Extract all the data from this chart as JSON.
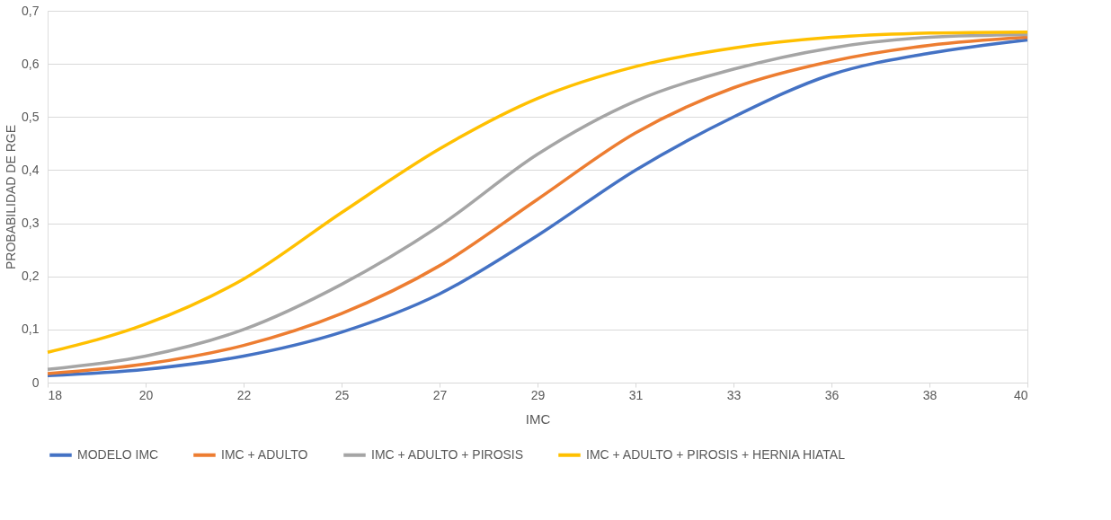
{
  "chart_data": {
    "type": "line",
    "xlabel": "IMC",
    "ylabel": "PROBABILIDAD DE RGE",
    "x": [
      18,
      20.2,
      22.4,
      24.6,
      26.8,
      29,
      31.2,
      33.4,
      35.6,
      37.8,
      40
    ],
    "xlim": [
      18,
      40
    ],
    "xticks": [
      18,
      {
        "value": 20.2,
        "label": "20"
      },
      {
        "value": 22.4,
        "label": "22"
      },
      {
        "value": 24.6,
        "label": "25"
      },
      {
        "value": 26.8,
        "label": "27"
      },
      29,
      {
        "value": 31.2,
        "label": "31"
      },
      {
        "value": 33.4,
        "label": "33"
      },
      {
        "value": 35.6,
        "label": "36"
      },
      {
        "value": 37.8,
        "label": "38"
      },
      40
    ],
    "ylim": [
      0,
      0.7
    ],
    "yticks": [
      {
        "value": 0,
        "label": "0"
      },
      {
        "value": 0.1,
        "label": "0,1"
      },
      {
        "value": 0.2,
        "label": "0,2"
      },
      {
        "value": 0.3,
        "label": "0,3"
      },
      {
        "value": 0.4,
        "label": "0,4"
      },
      {
        "value": 0.5,
        "label": "0,5"
      },
      {
        "value": 0.6,
        "label": "0,6"
      },
      {
        "value": 0.7,
        "label": "0,7"
      }
    ],
    "grid": "y",
    "legend": "bottom",
    "marker": "none",
    "line_style": "solid",
    "series": [
      {
        "name": "MODELO IMC",
        "color": "#4472c4",
        "values": [
          0.013,
          0.025,
          0.05,
          0.095,
          0.167,
          0.277,
          0.4,
          0.5,
          0.58,
          0.62,
          0.645
        ]
      },
      {
        "name": "IMC + ADULTO",
        "color": "#ed7d31",
        "values": [
          0.017,
          0.035,
          0.07,
          0.13,
          0.22,
          0.345,
          0.47,
          0.555,
          0.605,
          0.635,
          0.65
        ]
      },
      {
        "name": "IMC + ADULTO + PIROSIS",
        "color": "#a5a5a5",
        "values": [
          0.025,
          0.05,
          0.1,
          0.185,
          0.295,
          0.43,
          0.53,
          0.59,
          0.63,
          0.65,
          0.655
        ]
      },
      {
        "name": "IMC + ADULTO + PIROSIS + HERNIA HIATAL",
        "color": "#ffc000",
        "values": [
          0.057,
          0.11,
          0.195,
          0.32,
          0.44,
          0.535,
          0.595,
          0.63,
          0.65,
          0.658,
          0.66
        ]
      }
    ]
  }
}
